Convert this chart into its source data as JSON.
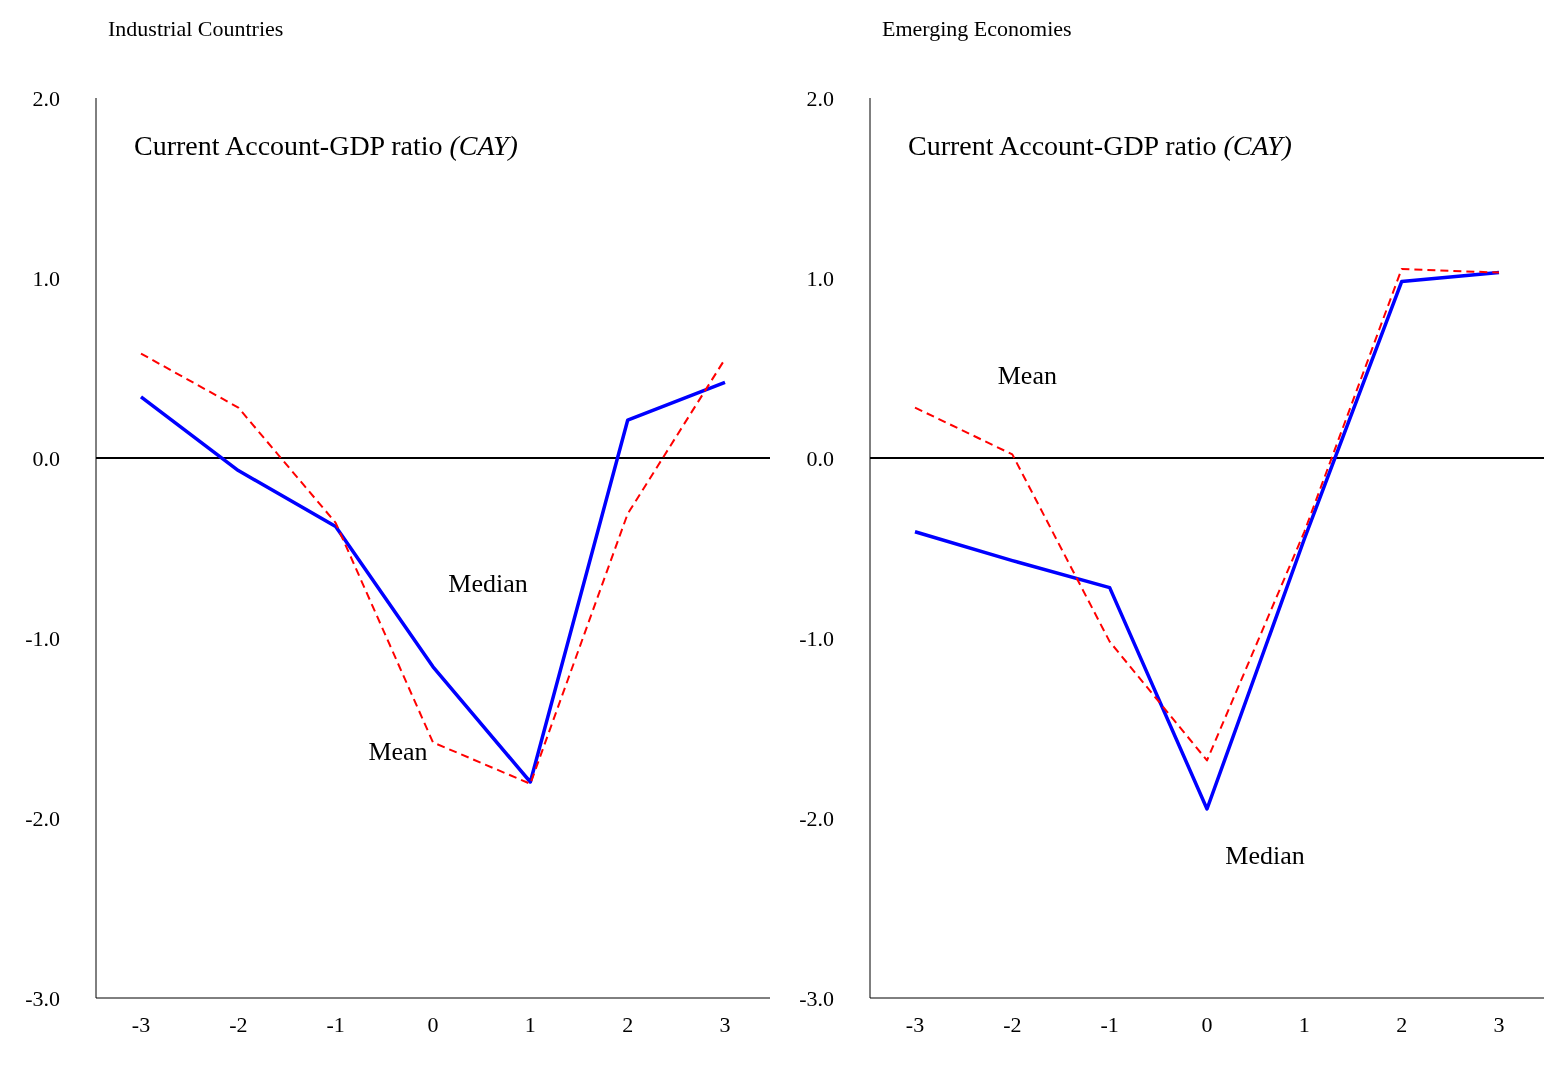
{
  "chart_data": [
    {
      "type": "line",
      "title": "Industrial Countries",
      "subtitle": "Current Account-GDP ratio (CAY)",
      "categories": [
        "-3",
        "-2",
        "-1",
        "0",
        "1",
        "2",
        "3"
      ],
      "ylim": [
        -3,
        2
      ],
      "yticks": [
        {
          "value": -3,
          "label": "-3.0"
        },
        {
          "value": -2,
          "label": "-2.0"
        },
        {
          "value": -1,
          "label": "-1.0"
        },
        {
          "value": 0,
          "label": "0.0"
        },
        {
          "value": 1,
          "label": "1.0"
        },
        {
          "value": 2,
          "label": "2.0"
        }
      ],
      "grid": false,
      "legend": false,
      "marker": "none",
      "ref_lines": [
        {
          "axis": "y",
          "value": 0,
          "color": "#000000"
        }
      ],
      "series": [
        {
          "name": "Median",
          "color": "#0000ff",
          "line_style": "solid",
          "values": [
            0.34,
            -0.07,
            -0.38,
            -1.16,
            -1.8,
            0.21,
            0.42
          ]
        },
        {
          "name": "Mean",
          "color": "#ff0000",
          "line_style": "dashed",
          "values": [
            0.58,
            0.28,
            -0.36,
            -1.58,
            -1.81,
            -0.31,
            0.55
          ]
        }
      ]
    },
    {
      "type": "line",
      "title": "Emerging Economies",
      "subtitle": "Current Account-GDP ratio (CAY)",
      "categories": [
        "-3",
        "-2",
        "-1",
        "0",
        "1",
        "2",
        "3"
      ],
      "ylim": [
        -3,
        2
      ],
      "yticks": [
        {
          "value": -3,
          "label": "-3.0"
        },
        {
          "value": -2,
          "label": "-2.0"
        },
        {
          "value": -1,
          "label": "-1.0"
        },
        {
          "value": 0,
          "label": "0.0"
        },
        {
          "value": 1,
          "label": "1.0"
        },
        {
          "value": 2,
          "label": "2.0"
        }
      ],
      "grid": false,
      "legend": false,
      "marker": "none",
      "ref_lines": [
        {
          "axis": "y",
          "value": 0,
          "color": "#000000"
        }
      ],
      "series": [
        {
          "name": "Median",
          "color": "#0000ff",
          "line_style": "solid",
          "values": [
            -0.41,
            -0.57,
            -0.72,
            -1.95,
            -0.45,
            0.98,
            1.03
          ]
        },
        {
          "name": "Mean",
          "color": "#ff0000",
          "line_style": "dashed",
          "values": [
            0.28,
            0.02,
            -1.02,
            -1.68,
            -0.41,
            1.05,
            1.03
          ]
        }
      ]
    }
  ]
}
